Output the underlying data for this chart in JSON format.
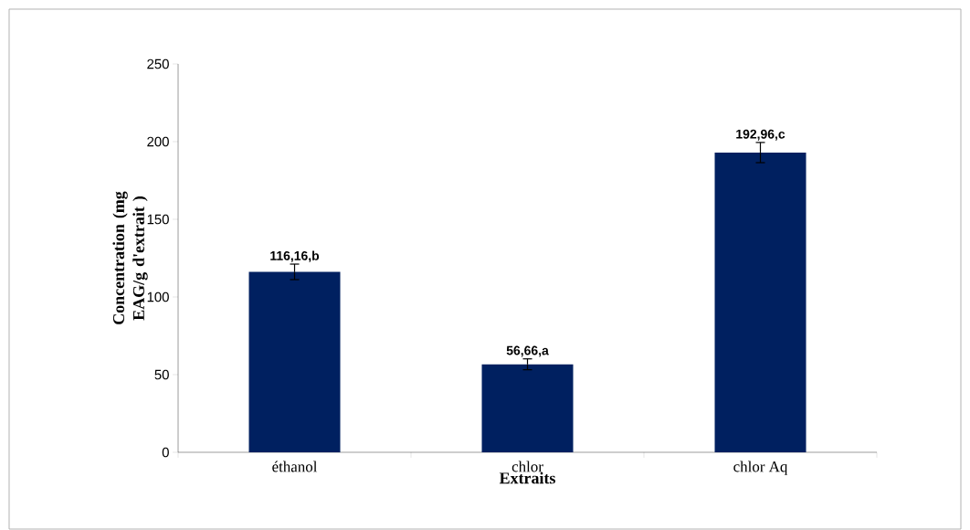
{
  "chart_data": {
    "type": "bar",
    "xlabel": "Extraits",
    "ylabel": "Concentration (mg EAG/g d'extrait )",
    "categories": [
      "éthanol",
      "chlor",
      "chlor Aq"
    ],
    "values": [
      116.16,
      56.66,
      192.96
    ],
    "errors": [
      5,
      3.5,
      6.5
    ],
    "value_labels": [
      "116,16,b",
      "56,66,a",
      "192,96,c"
    ],
    "color": "#002060",
    "ylim": [
      0,
      250
    ],
    "yticks": [
      0,
      50,
      100,
      150,
      200,
      250
    ]
  }
}
